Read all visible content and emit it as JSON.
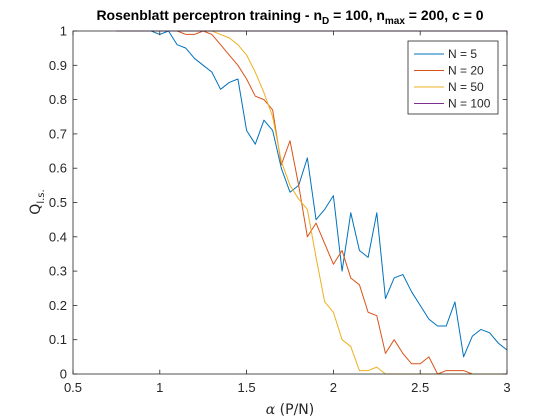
{
  "chart_data": {
    "type": "line",
    "title": {
      "main": "Rosenblatt perceptron training - n",
      "sub1": "D",
      "mid1": " = 100, n",
      "sub2": "max",
      "mid2": " = 200, c = 0"
    },
    "xlabel": {
      "symbol": "α",
      "rest": " (P/N)"
    },
    "ylabel": {
      "main": "Q",
      "sub": "l.s."
    },
    "xlim": [
      0.5,
      3
    ],
    "ylim": [
      0,
      1
    ],
    "xticks": [
      0.5,
      1,
      1.5,
      2,
      2.5,
      3
    ],
    "yticks": [
      0,
      0.1,
      0.2,
      0.3,
      0.4,
      0.5,
      0.6,
      0.7,
      0.8,
      0.9,
      1
    ],
    "xtick_labels": [
      "0.5",
      "1",
      "1.5",
      "2",
      "2.5",
      "3"
    ],
    "ytick_labels": [
      "0",
      "0.1",
      "0.2",
      "0.3",
      "0.4",
      "0.5",
      "0.6",
      "0.7",
      "0.8",
      "0.9",
      "1"
    ],
    "grid": false,
    "legend_position": "top-right",
    "series": [
      {
        "name": "N = 5",
        "color": "#0072BD",
        "x": [
          0.75,
          0.8,
          0.85,
          0.9,
          0.95,
          1.0,
          1.05,
          1.1,
          1.15,
          1.2,
          1.25,
          1.3,
          1.35,
          1.4,
          1.45,
          1.5,
          1.55,
          1.6,
          1.65,
          1.7,
          1.75,
          1.8,
          1.85,
          1.9,
          1.95,
          2.0,
          2.05,
          2.1,
          2.15,
          2.2,
          2.25,
          2.3,
          2.35,
          2.4,
          2.45,
          2.5,
          2.55,
          2.6,
          2.65,
          2.7,
          2.75,
          2.8,
          2.85,
          2.9,
          2.95,
          3.0
        ],
        "y": [
          1,
          1,
          1,
          1,
          1,
          0.99,
          1,
          0.96,
          0.95,
          0.92,
          0.9,
          0.88,
          0.83,
          0.85,
          0.86,
          0.71,
          0.67,
          0.74,
          0.71,
          0.6,
          0.53,
          0.55,
          0.63,
          0.45,
          0.48,
          0.52,
          0.3,
          0.47,
          0.36,
          0.34,
          0.47,
          0.22,
          0.28,
          0.29,
          0.24,
          0.2,
          0.16,
          0.14,
          0.14,
          0.21,
          0.05,
          0.11,
          0.13,
          0.12,
          0.09,
          0.07
        ]
      },
      {
        "name": "N = 20",
        "color": "#D95319",
        "x": [
          0.75,
          0.8,
          0.85,
          0.9,
          0.95,
          1.0,
          1.05,
          1.1,
          1.15,
          1.2,
          1.25,
          1.3,
          1.35,
          1.4,
          1.45,
          1.5,
          1.55,
          1.6,
          1.65,
          1.7,
          1.75,
          1.8,
          1.85,
          1.9,
          1.95,
          2.0,
          2.05,
          2.1,
          2.15,
          2.2,
          2.25,
          2.3,
          2.35,
          2.4,
          2.45,
          2.5,
          2.55,
          2.6,
          2.65,
          2.7,
          2.75,
          2.8,
          2.85,
          2.9,
          2.95,
          3.0
        ],
        "y": [
          1,
          1,
          1,
          1,
          1,
          1,
          1,
          1,
          0.99,
          0.99,
          1,
          0.99,
          0.96,
          0.93,
          0.9,
          0.86,
          0.81,
          0.8,
          0.77,
          0.61,
          0.68,
          0.55,
          0.4,
          0.44,
          0.38,
          0.32,
          0.36,
          0.28,
          0.26,
          0.18,
          0.17,
          0.06,
          0.1,
          0.06,
          0.03,
          0.03,
          0.05,
          0.0,
          0.01,
          0.01,
          0.01,
          0.0,
          0.0,
          0.0,
          0.0,
          0.0
        ]
      },
      {
        "name": "N = 50",
        "color": "#EDB120",
        "x": [
          0.75,
          0.8,
          0.85,
          0.9,
          0.95,
          1.0,
          1.05,
          1.1,
          1.15,
          1.2,
          1.25,
          1.3,
          1.35,
          1.4,
          1.45,
          1.5,
          1.55,
          1.6,
          1.65,
          1.7,
          1.75,
          1.8,
          1.85,
          1.9,
          1.95,
          2.0,
          2.05,
          2.1,
          2.15,
          2.2,
          2.25,
          2.3,
          2.35,
          2.4,
          2.45,
          2.5,
          2.55,
          2.6,
          2.65,
          2.7,
          2.75,
          2.8,
          2.85,
          2.9,
          2.95,
          3.0
        ],
        "y": [
          1,
          1,
          1,
          1,
          1,
          1,
          1,
          1,
          1,
          1,
          1,
          1,
          0.99,
          0.98,
          0.96,
          0.93,
          0.88,
          0.82,
          0.75,
          0.62,
          0.55,
          0.51,
          0.48,
          0.34,
          0.21,
          0.18,
          0.1,
          0.08,
          0.01,
          0.01,
          0.02,
          0.0,
          0.0,
          0.0,
          0.0,
          0.0,
          0.0,
          0.0,
          0.0,
          0.0,
          0.0,
          0.0,
          0.0,
          0.0,
          0.0,
          0.0
        ]
      },
      {
        "name": "N = 100",
        "color": "#7E2F8E",
        "x": [
          0.75,
          1.0,
          1.5,
          2.0,
          2.5,
          3.0
        ],
        "y": [
          1,
          1,
          1,
          1,
          1,
          1
        ]
      }
    ]
  }
}
